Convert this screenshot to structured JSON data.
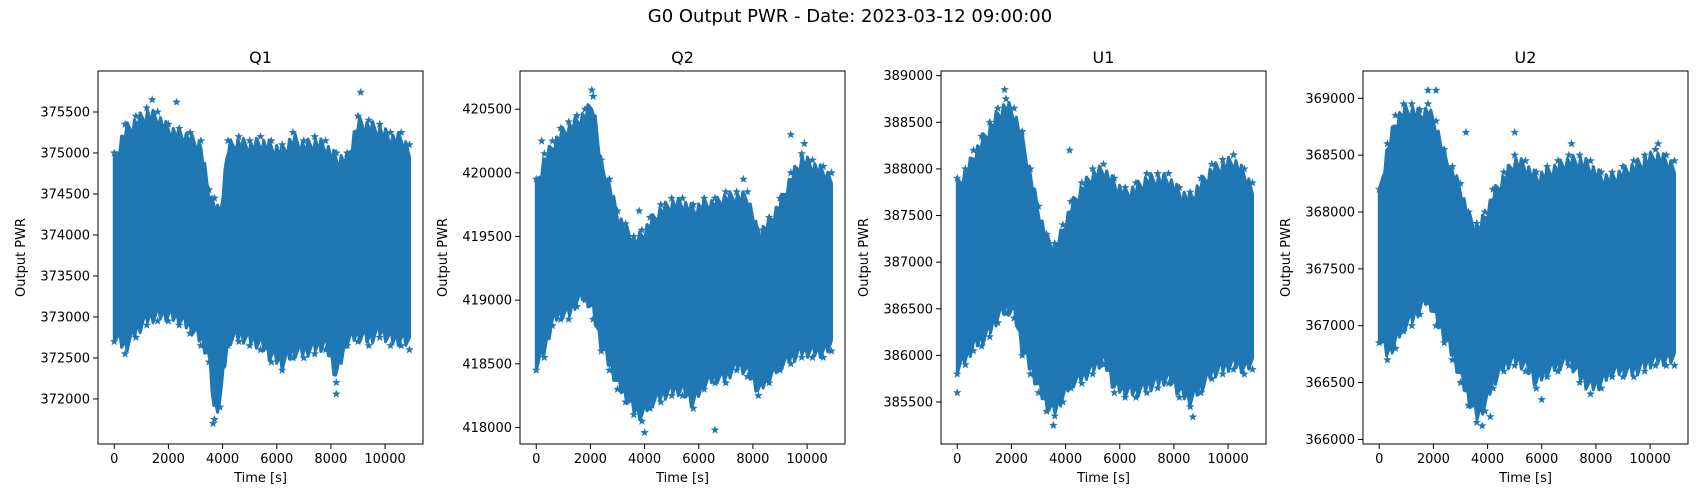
{
  "figure": {
    "title": "G0 Output PWR - Date: 2023-03-12 09:00:00"
  },
  "series_color": "#1f77b4",
  "marker": "star",
  "chart_data": [
    {
      "type": "scatter",
      "title": "Q1",
      "xlabel": "Time [s]",
      "ylabel": "Output PWR",
      "xlim": [
        -600,
        11400
      ],
      "ylim": [
        371450,
        376000
      ],
      "xticks": [
        0,
        2000,
        4000,
        6000,
        8000,
        10000
      ],
      "yticks": [
        372000,
        372500,
        373000,
        373500,
        374000,
        374500,
        375000,
        375500
      ],
      "x": [
        0,
        400,
        800,
        1200,
        1600,
        2000,
        2400,
        2800,
        3200,
        3500,
        3700,
        3900,
        4200,
        4600,
        5000,
        5400,
        5800,
        6200,
        6600,
        7000,
        7400,
        7800,
        8200,
        8600,
        9000,
        9400,
        9800,
        10200,
        10600,
        10900
      ],
      "upper": [
        375000,
        375350,
        375450,
        375550,
        375500,
        375350,
        375300,
        375250,
        375150,
        374550,
        374450,
        374300,
        375150,
        375200,
        375150,
        375200,
        375150,
        375100,
        375250,
        375150,
        375200,
        375150,
        375000,
        375000,
        375450,
        375400,
        375350,
        375250,
        375250,
        375100
      ],
      "lower": [
        372700,
        372550,
        372750,
        372900,
        372950,
        372950,
        372900,
        372800,
        372650,
        372450,
        371750,
        371900,
        372650,
        372700,
        372650,
        372600,
        372450,
        372350,
        372500,
        372500,
        372550,
        372600,
        372200,
        372650,
        372700,
        372650,
        372750,
        372650,
        372650,
        372600
      ],
      "outliers": [
        [
          1400,
          375650
        ],
        [
          2300,
          375620
        ],
        [
          9100,
          375740
        ],
        [
          3650,
          371700
        ],
        [
          8200,
          372060
        ],
        [
          3300,
          374350
        ]
      ]
    },
    {
      "type": "scatter",
      "title": "Q2",
      "xlabel": "Time [s]",
      "ylabel": "Output PWR",
      "xlim": [
        -600,
        11400
      ],
      "ylim": [
        417870,
        420800
      ],
      "xticks": [
        0,
        2000,
        4000,
        6000,
        8000,
        10000
      ],
      "yticks": [
        418000,
        418500,
        419000,
        419500,
        420000,
        420500
      ],
      "x": [
        0,
        300,
        600,
        900,
        1200,
        1500,
        1800,
        2100,
        2400,
        2700,
        3000,
        3300,
        3600,
        3900,
        4200,
        4600,
        5000,
        5400,
        5800,
        6200,
        6600,
        7000,
        7400,
        7800,
        8200,
        8600,
        9000,
        9400,
        9800,
        10200,
        10600,
        10900
      ],
      "upper": [
        419950,
        420150,
        420250,
        420350,
        420400,
        420450,
        420500,
        420600,
        420100,
        419950,
        419700,
        419600,
        419500,
        419550,
        419650,
        419750,
        419800,
        419800,
        419750,
        419800,
        419800,
        419850,
        419850,
        419850,
        419550,
        419650,
        419800,
        420000,
        420150,
        420100,
        420050,
        420000
      ],
      "lower": [
        418450,
        418550,
        418800,
        418850,
        418850,
        418950,
        419000,
        418850,
        418600,
        418450,
        418300,
        418200,
        418100,
        418050,
        418150,
        418200,
        418250,
        418250,
        418150,
        418300,
        418350,
        418350,
        418450,
        418400,
        418250,
        418350,
        418450,
        418500,
        418550,
        418550,
        418550,
        418600
      ],
      "outliers": [
        [
          200,
          420250
        ],
        [
          2050,
          420650
        ],
        [
          3800,
          419700
        ],
        [
          4000,
          417960
        ],
        [
          7650,
          419950
        ],
        [
          9400,
          420300
        ],
        [
          9900,
          420230
        ],
        [
          6600,
          417980
        ]
      ]
    },
    {
      "type": "scatter",
      "title": "U1",
      "xlabel": "Time [s]",
      "ylabel": "Output PWR",
      "xlim": [
        -600,
        11400
      ],
      "ylim": [
        385050,
        389050
      ],
      "xticks": [
        0,
        2000,
        4000,
        6000,
        8000,
        10000
      ],
      "yticks": [
        385500,
        386000,
        386500,
        387000,
        387500,
        388000,
        388500,
        389000
      ],
      "x": [
        0,
        300,
        600,
        900,
        1200,
        1500,
        1800,
        2100,
        2400,
        2700,
        3000,
        3300,
        3600,
        3900,
        4200,
        4600,
        5000,
        5400,
        5800,
        6200,
        6600,
        7000,
        7400,
        7800,
        8200,
        8600,
        9000,
        9400,
        9800,
        10200,
        10600,
        10900
      ],
      "upper": [
        387900,
        388000,
        388200,
        388350,
        388500,
        388650,
        388750,
        388650,
        388400,
        388000,
        387600,
        387300,
        387200,
        387400,
        387650,
        387850,
        388000,
        388050,
        387900,
        387800,
        387850,
        387950,
        387950,
        387950,
        387800,
        387750,
        387900,
        388050,
        388100,
        388150,
        388000,
        387850
      ],
      "lower": [
        385800,
        385900,
        386050,
        386100,
        386200,
        386350,
        386450,
        386400,
        386000,
        385800,
        385600,
        385400,
        385350,
        385500,
        385650,
        385700,
        385800,
        385900,
        385600,
        385550,
        385550,
        385600,
        385650,
        385700,
        385550,
        385450,
        385600,
        385750,
        385800,
        385850,
        385800,
        385850
      ],
      "outliers": [
        [
          0,
          385600
        ],
        [
          1750,
          388850
        ],
        [
          3550,
          385250
        ],
        [
          4150,
          388200
        ],
        [
          8700,
          385340
        ],
        [
          10200,
          388150
        ]
      ]
    },
    {
      "type": "scatter",
      "title": "U2",
      "xlabel": "Time [s]",
      "ylabel": "Output PWR",
      "xlim": [
        -600,
        11400
      ],
      "ylim": [
        365960,
        369240
      ],
      "xticks": [
        0,
        2000,
        4000,
        6000,
        8000,
        10000
      ],
      "yticks": [
        366000,
        366500,
        367000,
        367500,
        368000,
        368500,
        369000
      ],
      "x": [
        0,
        300,
        600,
        900,
        1200,
        1500,
        1800,
        2100,
        2400,
        2700,
        3000,
        3300,
        3600,
        3900,
        4200,
        4600,
        5000,
        5400,
        5800,
        6200,
        6600,
        7000,
        7400,
        7800,
        8200,
        8600,
        9000,
        9400,
        9800,
        10200,
        10600,
        10900
      ],
      "upper": [
        368200,
        368600,
        368850,
        368950,
        368950,
        368900,
        368950,
        368800,
        368550,
        368400,
        368250,
        368000,
        367900,
        368000,
        368200,
        368350,
        368500,
        368450,
        368350,
        368400,
        368450,
        368500,
        368500,
        368450,
        368350,
        368350,
        368400,
        368450,
        368500,
        368550,
        368500,
        368450
      ],
      "lower": [
        366850,
        366700,
        366800,
        366950,
        367000,
        367100,
        367200,
        367000,
        366850,
        366700,
        366500,
        366300,
        366150,
        366250,
        366450,
        366600,
        366650,
        366600,
        366450,
        366550,
        366600,
        366650,
        366500,
        366400,
        366450,
        366550,
        366550,
        366550,
        366600,
        366650,
        366650,
        366650
      ],
      "outliers": [
        [
          1800,
          369070
        ],
        [
          2100,
          369070
        ],
        [
          3200,
          368700
        ],
        [
          3800,
          366120
        ],
        [
          4100,
          366200
        ],
        [
          5000,
          368700
        ],
        [
          6000,
          366350
        ],
        [
          7100,
          368600
        ],
        [
          10300,
          368600
        ]
      ]
    }
  ]
}
